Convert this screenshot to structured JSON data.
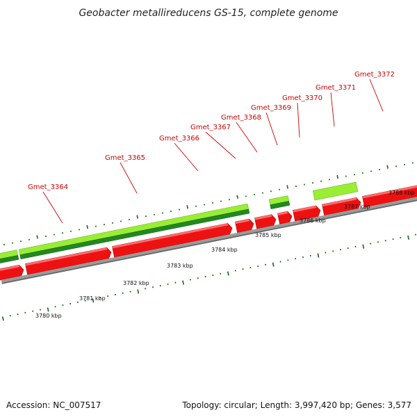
{
  "title": "Geobacter metallireducens GS-15, complete genome",
  "footer": {
    "accession": "Accession: NC_007517",
    "info": "Topology: circular; Length: 3,997,420 bp; Genes: 3,577"
  },
  "colors": {
    "cds_red": "#ee1111",
    "gene_lightgreen": "#99ee33",
    "gene_darkgreen": "#228822",
    "backbone": "#888888",
    "tick": "#116611",
    "label_red": "#cc0000",
    "leader": "#cc0000"
  },
  "axis": {
    "unit": "kbp",
    "major_ticks": [
      "3780 kbp",
      "3781 kbp",
      "3782 kbp",
      "3783 kbp",
      "3784 kbp",
      "3785 kbp",
      "3786 kbp",
      "3787 kbp",
      "3788 kbp"
    ]
  },
  "genes": [
    {
      "label": "Gmet_3364"
    },
    {
      "label": "Gmet_3365"
    },
    {
      "label": "Gmet_3366"
    },
    {
      "label": "Gmet_3367"
    },
    {
      "label": "Gmet_3368"
    },
    {
      "label": "Gmet_3369"
    },
    {
      "label": "Gmet_3370"
    },
    {
      "label": "Gmet_3371"
    },
    {
      "label": "Gmet_3372"
    }
  ]
}
